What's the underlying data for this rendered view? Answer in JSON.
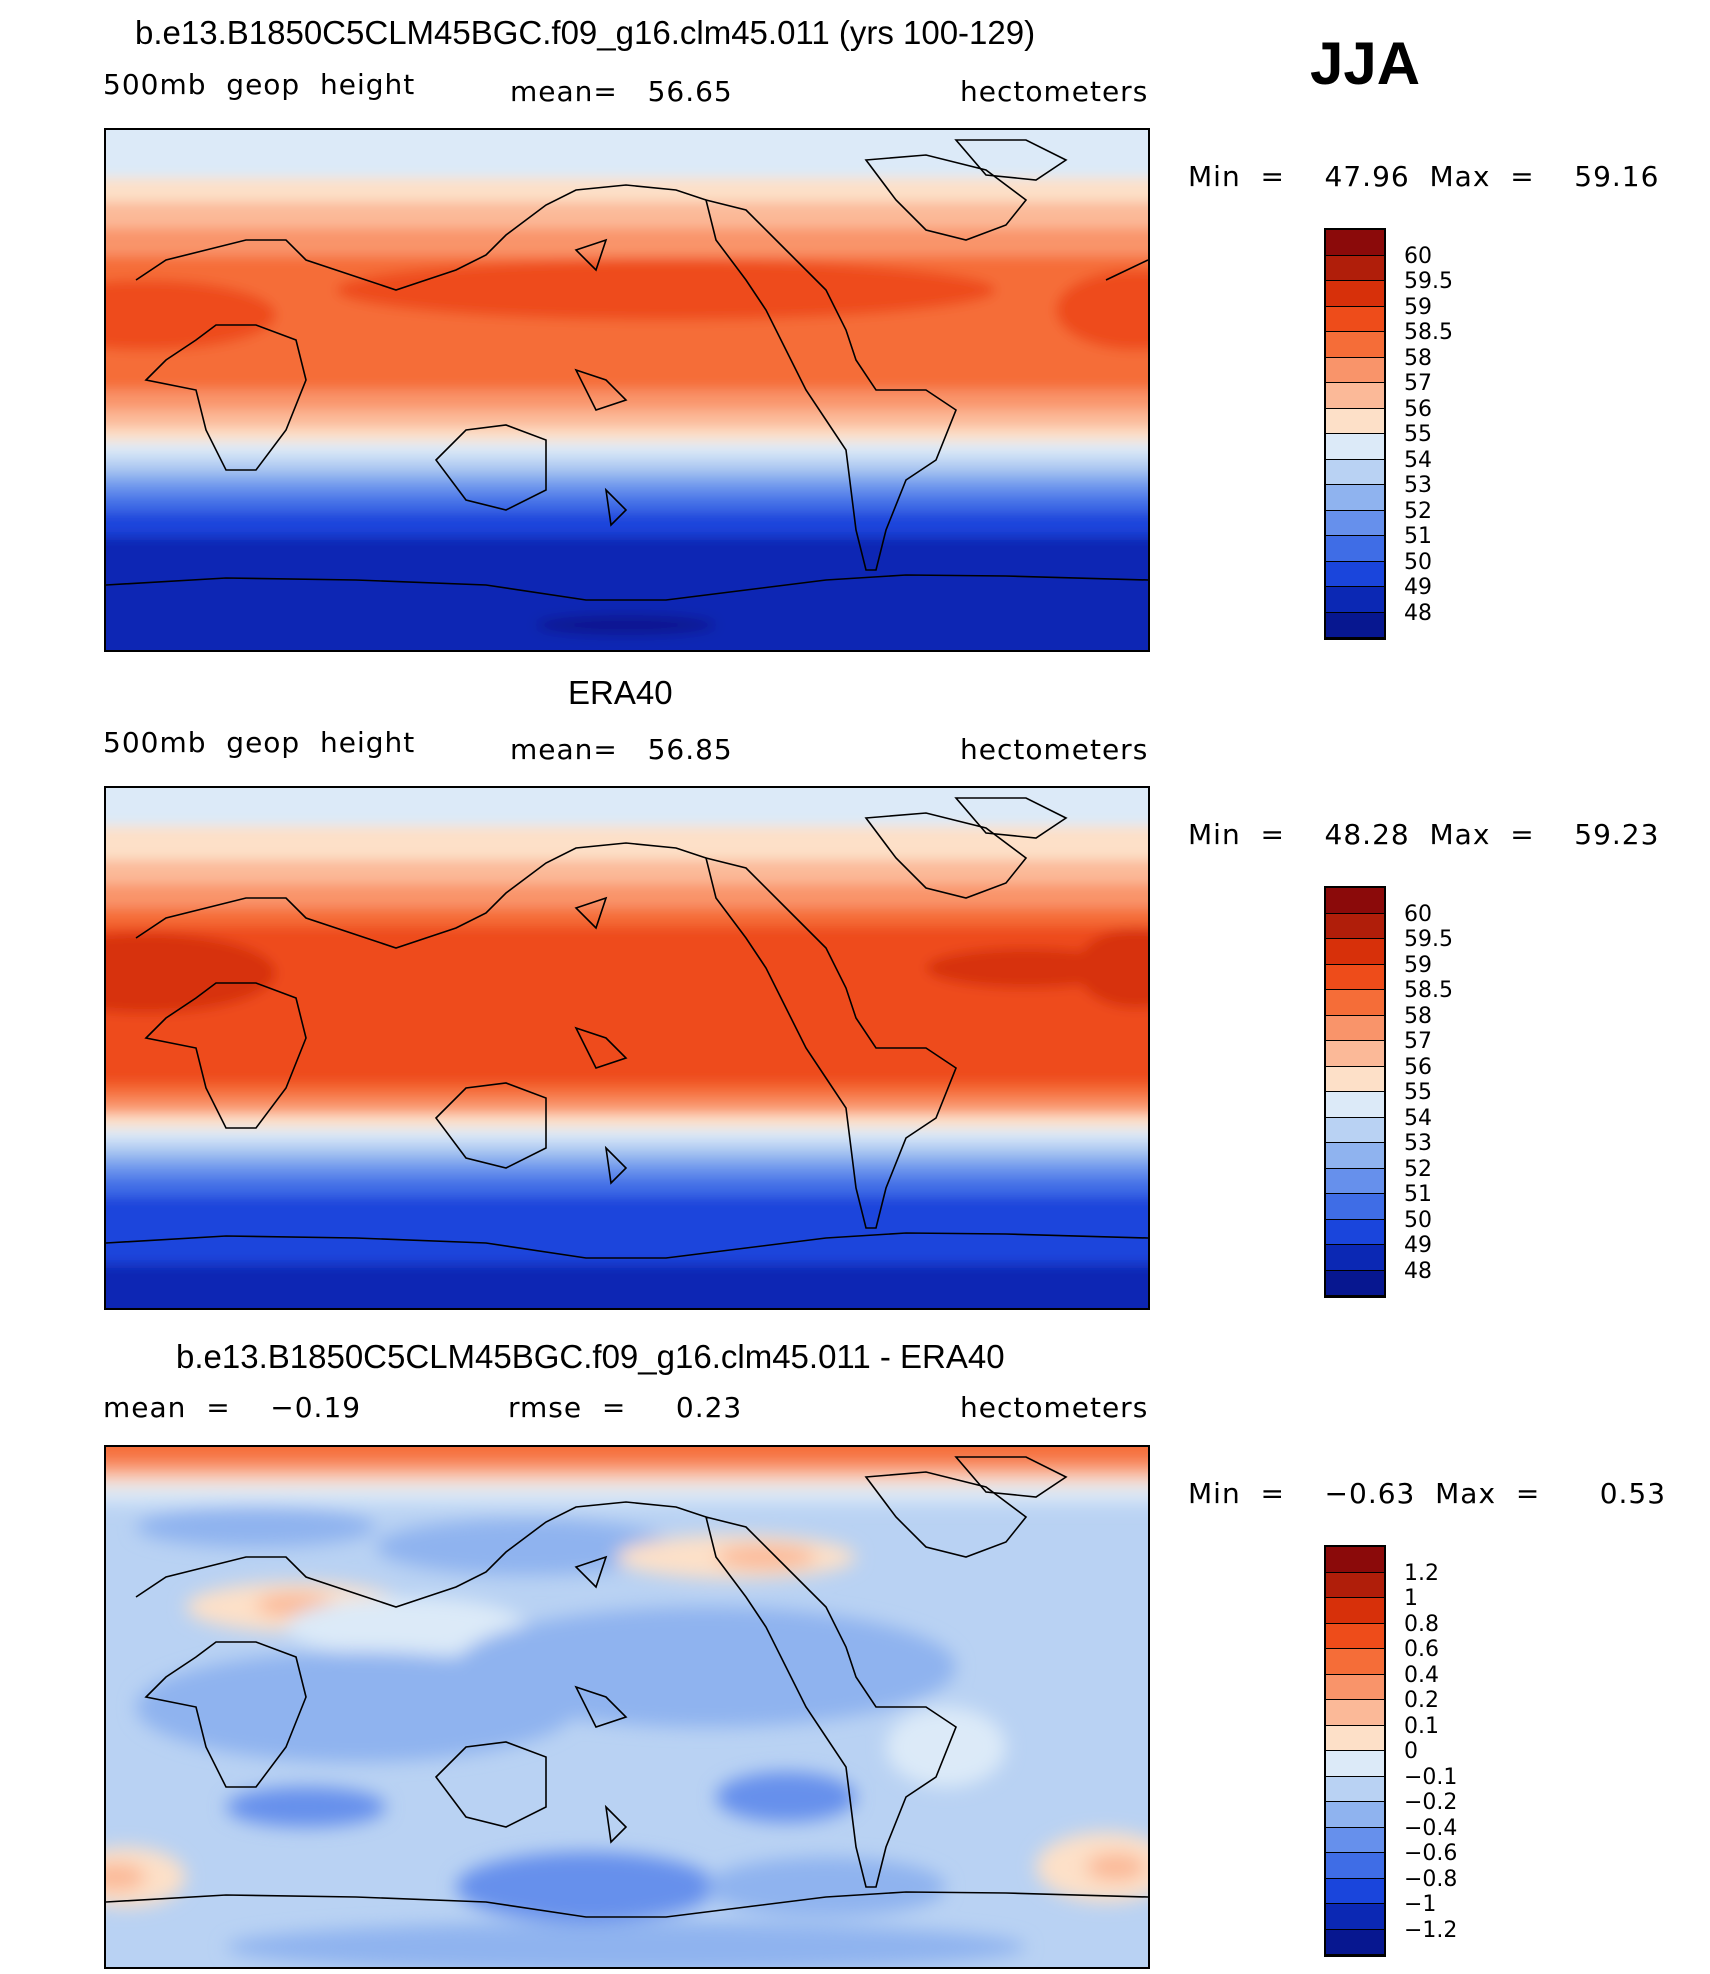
{
  "season": "JJA",
  "panels": [
    {
      "title": "b.e13.B1850C5CLM45BGC.f09_g16.clm45.011 (yrs 100-129)",
      "left_label": "500mb  geop  height",
      "center_label": "mean=   56.65",
      "right_label": "hectometers",
      "minmax": "Min  =    47.96  Max  =    59.16"
    },
    {
      "title": "ERA40",
      "left_label": "500mb  geop  height",
      "center_label": "mean=   56.85",
      "right_label": "hectometers",
      "minmax": "Min  =    48.28  Max  =    59.23"
    },
    {
      "title": "b.e13.B1850C5CLM45BGC.f09_g16.clm45.011 - ERA40",
      "left_label": "mean  =    −0.19",
      "center_label": "rmse  =     0.23",
      "right_label": "hectometers",
      "minmax": "Min  =    −0.63  Max  =      0.53"
    }
  ],
  "chart_data": [
    {
      "type": "heatmap",
      "title": "b.e13.B1850C5CLM45BGC.f09_g16.clm45.011 (yrs 100-129)",
      "variable": "500mb geop height",
      "units": "hectometers",
      "mean": 56.65,
      "min": 47.96,
      "max": 59.16,
      "levels": [
        "60",
        "59.5",
        "59",
        "58.5",
        "58",
        "57",
        "56",
        "55",
        "54",
        "53",
        "52",
        "51",
        "50",
        "49",
        "48"
      ],
      "colors": [
        "#8b0a0a",
        "#b01e0a",
        "#d7300a",
        "#ee4c1a",
        "#f56d38",
        "#f9946a",
        "#fbb998",
        "#fde0c8",
        "#dceaf8",
        "#b9d2f3",
        "#8fb3ef",
        "#6690ec",
        "#3f6de6",
        "#1a45dc",
        "#0b28b4",
        "#071790"
      ]
    },
    {
      "type": "heatmap",
      "title": "ERA40",
      "variable": "500mb geop height",
      "units": "hectometers",
      "mean": 56.85,
      "min": 48.28,
      "max": 59.23,
      "levels": [
        "60",
        "59.5",
        "59",
        "58.5",
        "58",
        "57",
        "56",
        "55",
        "54",
        "53",
        "52",
        "51",
        "50",
        "49",
        "48"
      ],
      "colors": [
        "#8b0a0a",
        "#b01e0a",
        "#d7300a",
        "#ee4c1a",
        "#f56d38",
        "#f9946a",
        "#fbb998",
        "#fde0c8",
        "#dceaf8",
        "#b9d2f3",
        "#8fb3ef",
        "#6690ec",
        "#3f6de6",
        "#1a45dc",
        "#0b28b4",
        "#071790"
      ]
    },
    {
      "type": "heatmap",
      "title": "b.e13.B1850C5CLM45BGC.f09_g16.clm45.011 - ERA40",
      "units": "hectometers",
      "mean": -0.19,
      "rmse": 0.23,
      "min": -0.63,
      "max": 0.53,
      "levels": [
        "1.2",
        "1",
        "0.8",
        "0.6",
        "0.4",
        "0.2",
        "0.1",
        "0",
        "−0.1",
        "−0.2",
        "−0.4",
        "−0.6",
        "−0.8",
        "−1",
        "−1.2"
      ],
      "colors": [
        "#8b0a0a",
        "#b01e0a",
        "#d7300a",
        "#ee4c1a",
        "#f56d38",
        "#f9946a",
        "#fbb998",
        "#fde0c8",
        "#dceaf8",
        "#b9d2f3",
        "#8fb3ef",
        "#6690ec",
        "#3f6de6",
        "#1a45dc",
        "#0b28b4",
        "#071790"
      ]
    }
  ]
}
